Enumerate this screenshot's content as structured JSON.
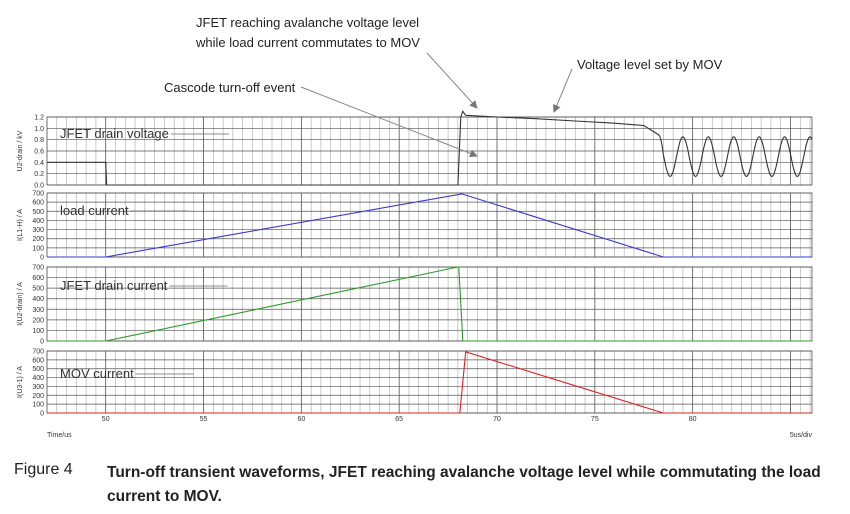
{
  "chart_data": {
    "type": "line",
    "title": "",
    "x_axis_label": "Time/us",
    "x_scale_label": "5us/div",
    "xlim": [
      47,
      86.1
    ],
    "x_ticks": [
      50,
      55,
      60,
      65,
      70,
      75,
      80
    ],
    "panels": [
      {
        "key": "voltage",
        "ylabel": "U2-drain / kV",
        "trace_label": "JFET drain voltage",
        "color": "#333333",
        "ylim": [
          0,
          1.2
        ],
        "y_ticks": [
          0.0,
          0.2,
          0.4,
          0.6,
          0.8,
          1.0,
          1.2
        ],
        "y_tick_labels": [
          "0.0",
          "0.2",
          "0.4",
          "0.6",
          "0.8",
          "1.0",
          "1.2"
        ],
        "x": [
          47,
          50.0,
          50.05,
          68.0,
          68.15,
          68.25,
          68.4,
          70,
          72,
          74,
          76,
          77.5,
          78.2
        ],
        "y": [
          0.4,
          0.4,
          0.0,
          0.0,
          1.2,
          1.3,
          1.23,
          1.2,
          1.17,
          1.13,
          1.09,
          1.05,
          0.9
        ],
        "oscillation": {
          "start": 78.2,
          "end": 86.1,
          "center": 0.5,
          "amplitude": 0.35,
          "period": 1.3
        }
      },
      {
        "key": "load",
        "ylabel": "I(L1-H) / A",
        "trace_label": "load current",
        "color": "#3a3ad0",
        "ylim": [
          0,
          700
        ],
        "y_ticks": [
          0,
          100,
          200,
          300,
          400,
          500,
          600,
          700
        ],
        "y_tick_labels": [
          "0",
          "100",
          "200",
          "300",
          "400",
          "500",
          "600",
          "700"
        ],
        "x": [
          47,
          50.0,
          68.2,
          78.5,
          86.1
        ],
        "y": [
          0,
          0,
          690,
          0,
          0
        ]
      },
      {
        "key": "jfet",
        "ylabel": "I(U2-drain) / A",
        "trace_label": "JFET drain current",
        "color": "#2e9a2e",
        "ylim": [
          0,
          700
        ],
        "y_ticks": [
          0,
          100,
          200,
          300,
          400,
          500,
          600,
          700
        ],
        "y_tick_labels": [
          "0",
          "100",
          "200",
          "300",
          "400",
          "500",
          "600",
          "700"
        ],
        "x": [
          47,
          50.0,
          68.0,
          68.05,
          68.25,
          68.4,
          86.1
        ],
        "y": [
          0,
          0,
          700,
          700,
          0,
          0,
          0
        ]
      },
      {
        "key": "mov",
        "ylabel": "I(U3-1) / A",
        "trace_label": "MOV current",
        "color": "#e02020",
        "ylim": [
          0,
          700
        ],
        "y_ticks": [
          0,
          100,
          200,
          300,
          400,
          500,
          600,
          700
        ],
        "y_tick_labels": [
          "0",
          "100",
          "200",
          "300",
          "400",
          "500",
          "600",
          "700"
        ],
        "x": [
          47,
          68.1,
          68.4,
          78.5,
          86.1
        ],
        "y": [
          0,
          0,
          690,
          0,
          0
        ]
      }
    ],
    "annotations": [
      "JFET reaching avalanche voltage level",
      "while load current commutates to MOV",
      "Cascode turn-off event",
      "Voltage level set by MOV"
    ]
  },
  "caption": {
    "figure_number": "Figure 4",
    "text": "Turn-off transient waveforms, JFET reaching avalanche voltage level while commutating the load current to MOV."
  }
}
